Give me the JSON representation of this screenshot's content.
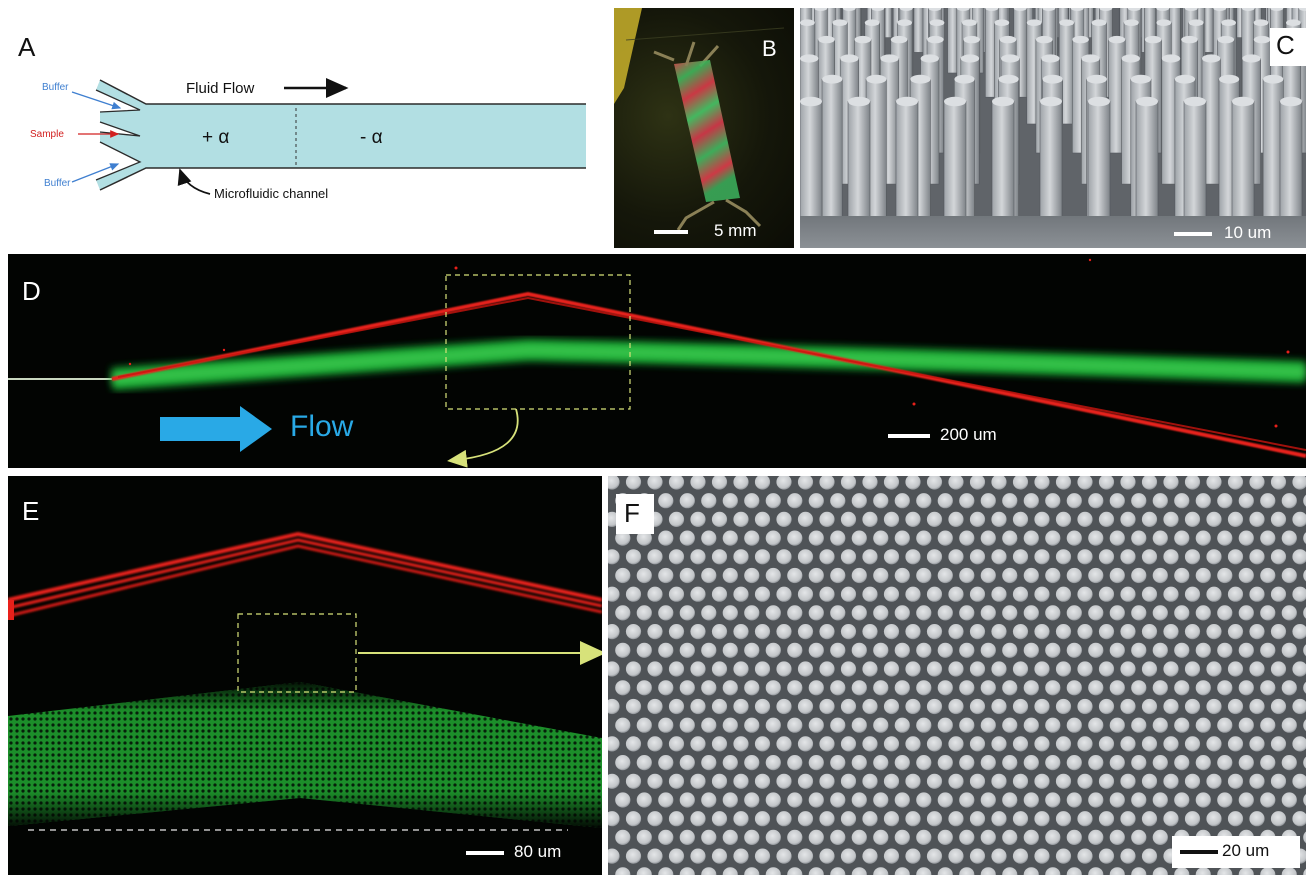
{
  "panel_a": {
    "letter": "A",
    "fluid_flow_label": "Fluid Flow",
    "buffer_top_label": "Buffer",
    "sample_label": "Sample",
    "buffer_bottom_label": "Buffer",
    "plus_alpha_label": "+ α",
    "minus_alpha_label": "- α",
    "channel_label": "Microfluidic channel",
    "colors": {
      "channel_fill": "#b2dfe3",
      "inlet_blue": "#3f7fd0",
      "sample_red": "#d22020"
    }
  },
  "panel_b": {
    "letter": "B",
    "scale_label": "5 mm"
  },
  "panel_c": {
    "letter": "C",
    "scale_label": "10 um"
  },
  "panel_d": {
    "letter": "D",
    "flow_label": "Flow",
    "scale_label": "200 um",
    "colors": {
      "flow_arrow": "#29a9e6",
      "red_stream": "#e8201a",
      "green_stream": "#1fbf3a",
      "inset_box": "#d7e27a"
    }
  },
  "panel_e": {
    "letter": "E",
    "scale_label": "80 um"
  },
  "panel_f": {
    "letter": "F",
    "scale_label": "20 um"
  }
}
